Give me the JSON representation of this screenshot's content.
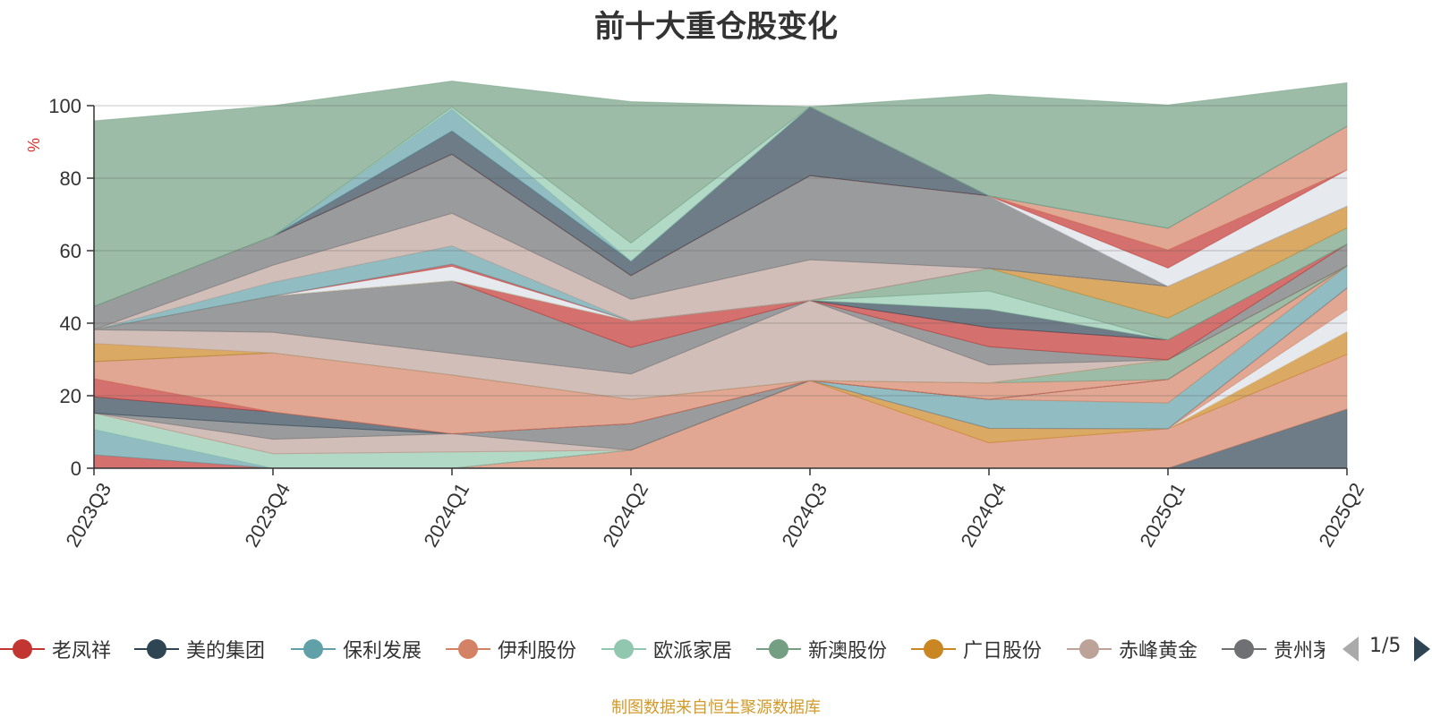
{
  "source_note": "制图数据来自恒生聚源数据库",
  "legend": {
    "items": [
      {
        "name": "老凤祥",
        "color": "#c23531"
      },
      {
        "name": "美的集团",
        "color": "#2f4554"
      },
      {
        "name": "保利发展",
        "color": "#61a0a8"
      },
      {
        "name": "伊利股份",
        "color": "#d48265"
      },
      {
        "name": "欧派家居",
        "color": "#91c7ae"
      },
      {
        "name": "新澳股份",
        "color": "#749f83"
      },
      {
        "name": "广日股份",
        "color": "#ca8622"
      },
      {
        "name": "赤峰黄金",
        "color": "#bda29a"
      },
      {
        "name": "贵州茅台",
        "color": "#6e7074"
      }
    ],
    "page": "1/5"
  },
  "chart_data": {
    "type": "area",
    "stacked": true,
    "title": "前十大重仓股变化",
    "ylabel": "%",
    "xlabel": "",
    "ylim": [
      0,
      100
    ],
    "yticks": [
      0,
      20,
      40,
      60,
      80,
      100
    ],
    "grid": true,
    "categories": [
      "2023Q3",
      "2023Q4",
      "2024Q1",
      "2024Q2",
      "2024Q3",
      "2024Q4",
      "2025Q1",
      "2025Q2"
    ],
    "series": [
      {
        "color": "#2f4554",
        "values": [
          0,
          0,
          0,
          0,
          0,
          0,
          0,
          16.3
        ]
      },
      {
        "color": "#d48265",
        "values": [
          0,
          0,
          0,
          5,
          24.2,
          7,
          10.9,
          15.1
        ]
      },
      {
        "color": "#ca8622",
        "values": [
          0,
          0,
          0,
          0,
          0,
          4,
          0,
          6.3
        ]
      },
      {
        "color": "#dcdfe6",
        "values": [
          0,
          0,
          0,
          0,
          0,
          0,
          0,
          6
        ]
      },
      {
        "color": "#d48265",
        "values": [
          0,
          0,
          0,
          0,
          0,
          0,
          0,
          6
        ]
      },
      {
        "color": "#c23531",
        "values": [
          3.7,
          0,
          0,
          0,
          0,
          0,
          0,
          0
        ]
      },
      {
        "color": "#61a0a8",
        "values": [
          7,
          0,
          0,
          0,
          0,
          8,
          7.1,
          6.1
        ]
      },
      {
        "color": "#91c7ae",
        "values": [
          4.5,
          4,
          4.5,
          0,
          0,
          0,
          0,
          0
        ]
      },
      {
        "color": "#d48265",
        "values": [
          0,
          0,
          0,
          0,
          0,
          0,
          6.5,
          0
        ]
      },
      {
        "color": "#bda29a",
        "values": [
          0,
          4,
          5,
          0,
          0,
          0,
          0,
          0
        ]
      },
      {
        "color": "#6e7074",
        "values": [
          0,
          4,
          0,
          7.3,
          0,
          0,
          0,
          0
        ]
      },
      {
        "color": "#2f4554",
        "values": [
          4.5,
          3.5,
          0,
          0,
          0,
          0,
          0,
          0
        ]
      },
      {
        "color": "#c23531",
        "values": [
          5,
          0,
          0,
          0,
          0,
          0,
          0,
          0
        ]
      },
      {
        "color": "#d48265",
        "values": [
          4.7,
          16.3,
          16.2,
          6.7,
          0,
          4.5,
          0,
          0
        ]
      },
      {
        "color": "#749f83",
        "values": [
          0,
          0,
          0,
          0,
          0,
          0,
          5.4,
          0
        ]
      },
      {
        "color": "#ca8622",
        "values": [
          5,
          0,
          0,
          0,
          0,
          0,
          0,
          0
        ]
      },
      {
        "color": "#bda29a",
        "values": [
          3.8,
          5.7,
          6,
          7,
          22.1,
          5,
          0,
          0
        ]
      },
      {
        "color": "#6e7074",
        "values": [
          0,
          10,
          20,
          7.3,
          0,
          5,
          0,
          6
        ]
      },
      {
        "color": "#c23531",
        "values": [
          0,
          0,
          0,
          7.3,
          0,
          5.3,
          5.5,
          0
        ]
      },
      {
        "color": "#2f4554",
        "values": [
          0,
          0,
          0,
          0,
          0,
          5,
          0,
          0
        ]
      },
      {
        "color": "#91c7ae",
        "values": [
          0,
          0,
          0,
          0,
          0,
          5.1,
          0,
          0
        ]
      },
      {
        "color": "#749f83",
        "values": [
          0,
          0,
          0,
          0,
          0,
          6.2,
          6,
          4.5
        ]
      },
      {
        "color": "#ca8622",
        "values": [
          0,
          0,
          0,
          0,
          0,
          0,
          8.8,
          6
        ]
      },
      {
        "color": "#dcdfe6",
        "values": [
          0,
          0,
          4,
          0,
          0,
          0,
          0,
          0
        ]
      },
      {
        "color": "#c23531",
        "values": [
          0,
          0,
          0.6,
          0,
          0,
          0,
          0,
          0
        ]
      },
      {
        "color": "#61a0a8",
        "values": [
          0,
          3.8,
          5,
          0,
          0,
          0,
          0,
          0
        ]
      },
      {
        "color": "#bda29a",
        "values": [
          0,
          4.7,
          9,
          6,
          11.2,
          0,
          0,
          0
        ]
      },
      {
        "color": "#6e7074",
        "values": [
          6.4,
          8,
          16.3,
          6.5,
          23.2,
          20,
          0,
          0
        ]
      },
      {
        "color": "#dcdfe6",
        "values": [
          0,
          0,
          0,
          0,
          0,
          0,
          5,
          10
        ]
      },
      {
        "color": "#c23531",
        "values": [
          0,
          0,
          0,
          0,
          0,
          0,
          5,
          0
        ]
      },
      {
        "color": "#d48265",
        "values": [
          0,
          0,
          0,
          0,
          0,
          0,
          6,
          12
        ]
      },
      {
        "color": "#2f4554",
        "values": [
          0,
          0,
          6.4,
          4,
          19,
          0,
          0,
          0
        ]
      },
      {
        "color": "#61a0a8",
        "values": [
          0,
          0,
          6,
          0,
          0,
          0,
          0,
          0
        ]
      },
      {
        "color": "#91c7ae",
        "values": [
          0,
          0,
          0.6,
          5,
          0,
          0,
          0,
          0
        ]
      },
      {
        "color": "#749f83",
        "values": [
          51.2,
          36,
          7.2,
          39,
          0,
          28,
          34,
          12
        ]
      }
    ]
  }
}
